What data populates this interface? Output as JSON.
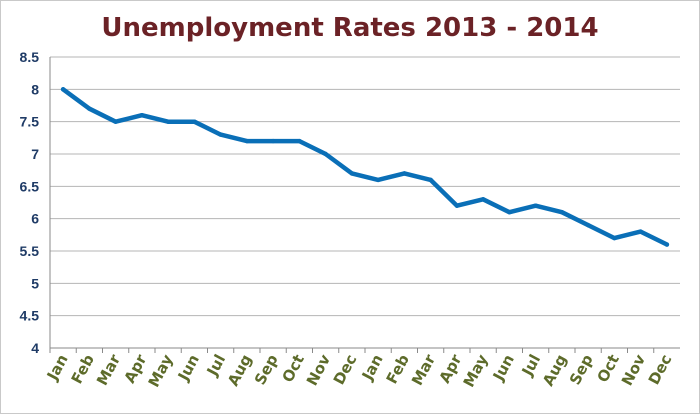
{
  "chart_data": {
    "type": "line",
    "title": "Unemployment Rates 2013 - 2014",
    "xlabel": "",
    "ylabel": "",
    "categories": [
      "Jan",
      "Feb",
      "Mar",
      "Apr",
      "May",
      "Jun",
      "Jul",
      "Aug",
      "Sep",
      "Oct",
      "Nov",
      "Dec",
      "Jan",
      "Feb",
      "Mar",
      "Apr",
      "May",
      "Jun",
      "Jul",
      "Aug",
      "Sep",
      "Oct",
      "Nov",
      "Dec"
    ],
    "series": [
      {
        "values": [
          8.0,
          7.7,
          7.5,
          7.6,
          7.5,
          7.5,
          7.3,
          7.2,
          7.2,
          7.2,
          7.0,
          6.7,
          6.6,
          6.7,
          6.6,
          6.2,
          6.3,
          6.1,
          6.2,
          6.1,
          5.9,
          5.7,
          5.8,
          5.6
        ],
        "color": "#0a6fb7"
      }
    ],
    "ylim": [
      4,
      8.5
    ],
    "yticks": [
      "4",
      "4.5",
      "5",
      "5.5",
      "6",
      "6.5",
      "7",
      "7.5",
      "8",
      "8.5"
    ],
    "grid": true,
    "legend": "none"
  }
}
